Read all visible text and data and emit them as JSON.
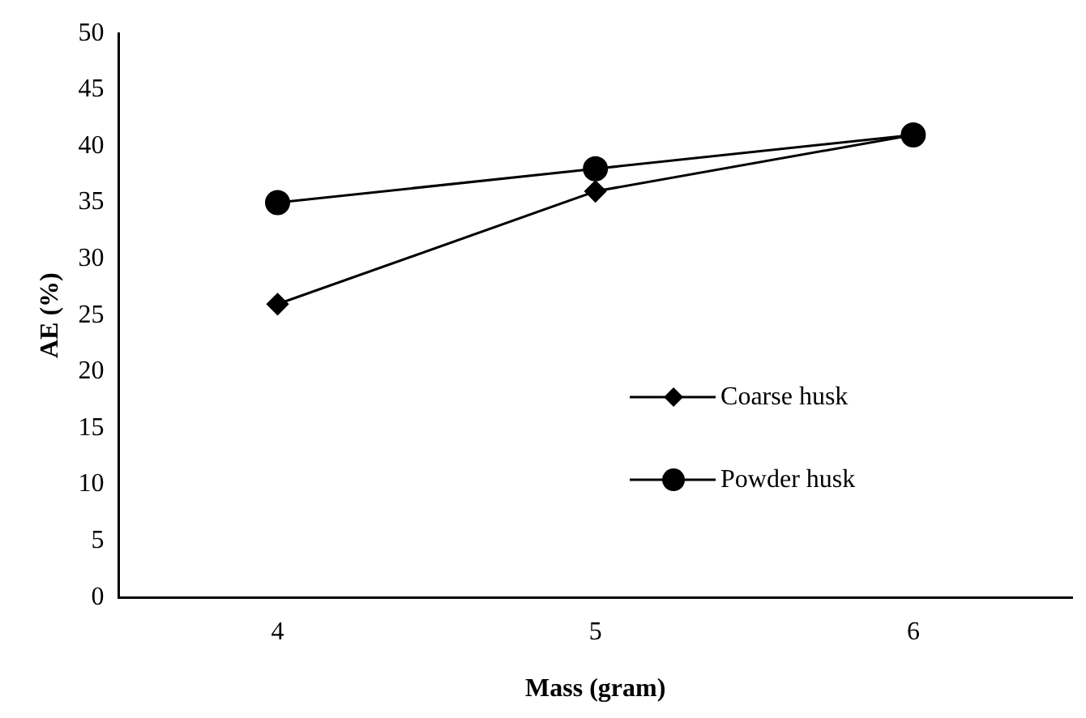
{
  "chart_data": {
    "type": "line",
    "xlabel": "Mass (gram)",
    "ylabel": "AE (%)",
    "categories": [
      "4",
      "5",
      "6"
    ],
    "series": [
      {
        "name": "Coarse husk",
        "color": "#000000",
        "marker": "diamond",
        "values": [
          26,
          36,
          41
        ]
      },
      {
        "name": "Powder husk",
        "color": "#000000",
        "marker": "circle",
        "values": [
          35,
          38,
          41
        ]
      }
    ],
    "ylim": [
      0,
      50
    ],
    "yticks": [
      0,
      5,
      10,
      15,
      20,
      25,
      30,
      35,
      40,
      45,
      50
    ],
    "grid": false,
    "legend": "bottom right",
    "line_style": "solid"
  }
}
